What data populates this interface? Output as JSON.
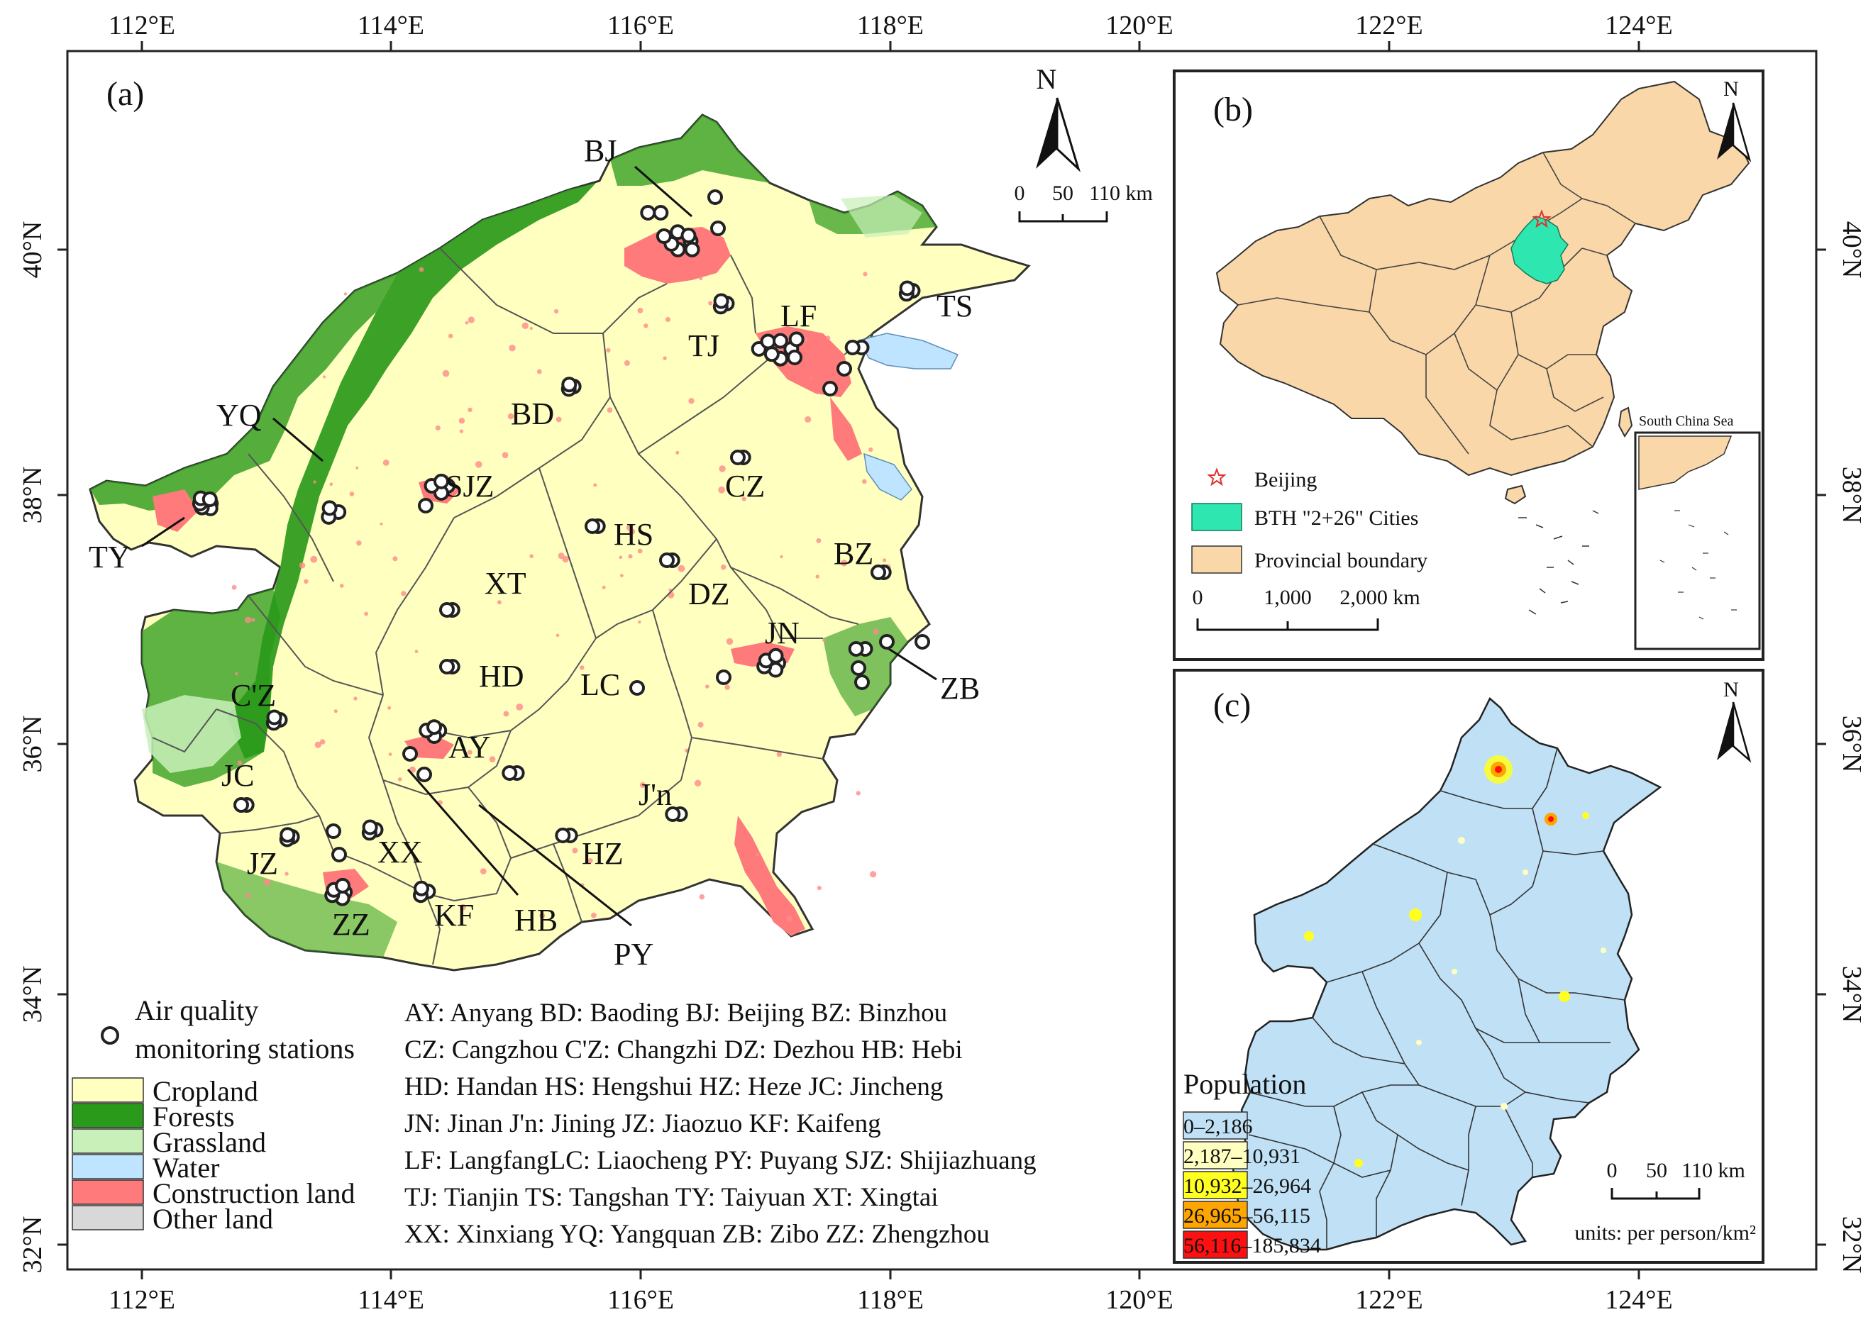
{
  "axes": {
    "lon_ticks": [
      "112°E",
      "114°E",
      "116°E",
      "118°E",
      "120°E",
      "122°E",
      "124°E"
    ],
    "lat_ticks": [
      "32°N",
      "34°N",
      "36°N",
      "38°N",
      "40°N"
    ]
  },
  "panel_a": {
    "label": "(a)",
    "north": "N",
    "scale": {
      "zero": "0",
      "mid": "50",
      "end": "110 km"
    },
    "cities": [
      {
        "code": "BJ",
        "lon": 116.4,
        "lat": 40.0
      },
      {
        "code": "TS",
        "lon": 118.2,
        "lat": 39.6
      },
      {
        "code": "LF",
        "lon": 116.7,
        "lat": 39.5
      },
      {
        "code": "TJ",
        "lon": 117.2,
        "lat": 39.1
      },
      {
        "code": "BD",
        "lon": 115.5,
        "lat": 38.8
      },
      {
        "code": "YQ",
        "lon": 113.6,
        "lat": 38.9
      },
      {
        "code": "SJZ",
        "lon": 114.5,
        "lat": 38.0
      },
      {
        "code": "CZ",
        "lon": 116.9,
        "lat": 38.2
      },
      {
        "code": "TY",
        "lon": 112.5,
        "lat": 37.8
      },
      {
        "code": "HS",
        "lon": 115.7,
        "lat": 37.7
      },
      {
        "code": "BZ",
        "lon": 118.0,
        "lat": 37.4
      },
      {
        "code": "XT",
        "lon": 114.5,
        "lat": 37.1
      },
      {
        "code": "DZ",
        "lon": 116.6,
        "lat": 37.4
      },
      {
        "code": "JN",
        "lon": 117.0,
        "lat": 36.7
      },
      {
        "code": "ZB",
        "lon": 118.0,
        "lat": 36.8
      },
      {
        "code": "HD",
        "lon": 114.5,
        "lat": 36.6
      },
      {
        "code": "LC",
        "lon": 116.0,
        "lat": 36.4
      },
      {
        "code": "C'Z",
        "lon": 113.1,
        "lat": 36.2
      },
      {
        "code": "AY",
        "lon": 114.4,
        "lat": 36.1
      },
      {
        "code": "JC",
        "lon": 112.9,
        "lat": 35.5
      },
      {
        "code": "J'n",
        "lon": 116.6,
        "lat": 35.4
      },
      {
        "code": "JZ",
        "lon": 113.2,
        "lat": 35.2
      },
      {
        "code": "XX",
        "lon": 113.9,
        "lat": 35.3
      },
      {
        "code": "HZ",
        "lon": 115.5,
        "lat": 35.2
      },
      {
        "code": "ZZ",
        "lon": 113.6,
        "lat": 34.7
      },
      {
        "code": "KF",
        "lon": 114.3,
        "lat": 34.8
      },
      {
        "code": "HB",
        "lon": 114.3,
        "lat": 35.7
      },
      {
        "code": "PY",
        "lon": 115.0,
        "lat": 35.8
      }
    ],
    "legend": {
      "stations": "Air quality monitoring stations",
      "stations_line1": "Air quality",
      "stations_line2": "monitoring stations",
      "classes": [
        {
          "name": "Cropland",
          "color": "#ffffc0"
        },
        {
          "name": "Forests",
          "color": "#2a9a1a"
        },
        {
          "name": "Grassland",
          "color": "#c8f0b8"
        },
        {
          "name": "Water",
          "color": "#bfe4ff"
        },
        {
          "name": "Construction land",
          "color": "#ff7a7a"
        },
        {
          "name": "Other land",
          "color": "#d8d8d8"
        }
      ]
    },
    "abbreviations": [
      "AY: Anyang BD: Baoding BJ: Beijing BZ: Binzhou",
      "CZ: Cangzhou C'Z: Changzhi DZ: Dezhou HB: Hebi",
      "HD: Handan HS: Hengshui HZ: Heze JC: Jincheng",
      "JN: Jinan J'n: Jining JZ: Jiaozuo KF: Kaifeng",
      "LF: LangfangLC: Liaocheng PY: Puyang SJZ: Shijiazhuang",
      "TJ: Tianjin  TS:  Tangshan TY:  Taiyuan XT: Xingtai",
      "XX: Xinxiang YQ: Yangquan ZB: Zibo ZZ: Zhengzhou"
    ]
  },
  "panel_b": {
    "label": "(b)",
    "north": "N",
    "inset_title": "South China Sea",
    "legend": [
      {
        "name": "Beijing",
        "kind": "star",
        "color": "#e03030"
      },
      {
        "name": "BTH \"2+26\" Cities",
        "kind": "patch",
        "color": "#2ee6b0"
      },
      {
        "name": "Provincial boundary",
        "kind": "patch",
        "color": "#fad7a8"
      }
    ],
    "scale": {
      "zero": "0",
      "mid": "1,000",
      "end": "2,000 km"
    }
  },
  "panel_c": {
    "label": "(c)",
    "north": "N",
    "legend_title": "Population",
    "classes": [
      {
        "range": "0–2,186",
        "color": "#bfe0f5"
      },
      {
        "range": "2,187–10,931",
        "color": "#ffffc0"
      },
      {
        "range": "10,932–26,964",
        "color": "#ffff20"
      },
      {
        "range": "26,965–56,115",
        "color": "#ffa500"
      },
      {
        "range": "56,116–185,834",
        "color": "#ff1010"
      }
    ],
    "scale": {
      "zero": "0",
      "mid": "50",
      "end": "110 km"
    },
    "units": "units: per person/km²"
  },
  "colors": {
    "cropland": "#ffffc0",
    "forest": "#2a9a1a",
    "construction": "#ff7a7a",
    "water": "#bfe4ff",
    "province": "#fad7a8",
    "bth": "#2ee6b0",
    "pop_base": "#bfe0f5"
  }
}
